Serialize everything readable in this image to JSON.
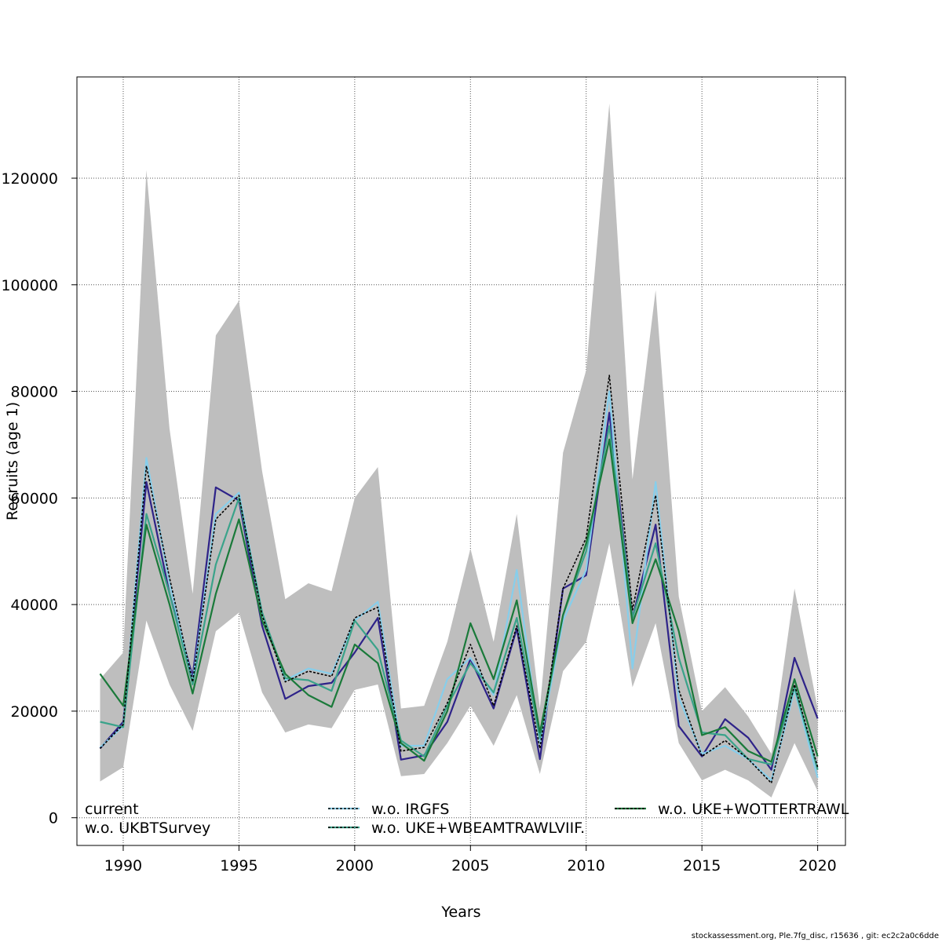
{
  "chart_data": {
    "type": "line",
    "xlabel": "Years",
    "ylabel": "Recruits (age 1)",
    "xlim": [
      1988,
      2021.2
    ],
    "ylim": [
      -5200,
      139000
    ],
    "xticks": [
      1990,
      1995,
      2000,
      2005,
      2010,
      2015,
      2020
    ],
    "yticks": [
      0,
      20000,
      40000,
      60000,
      80000,
      100000,
      120000
    ],
    "grid": true,
    "legend_position": "bottom",
    "x": [
      1989,
      1990,
      1991,
      1992,
      1993,
      1994,
      1995,
      1996,
      1997,
      1998,
      1999,
      2000,
      2001,
      2002,
      2003,
      2004,
      2005,
      2006,
      2007,
      2008,
      2009,
      2010,
      2011,
      2012,
      2013,
      2014,
      2015,
      2016,
      2017,
      2018,
      2019,
      2020
    ],
    "confidence_band": {
      "upper": [
        26000,
        31000,
        121500,
        73000,
        42000,
        90500,
        97000,
        65000,
        41000,
        44000,
        42500,
        60000,
        65800,
        20500,
        21000,
        33000,
        50500,
        33000,
        57000,
        20500,
        68500,
        84000,
        134000,
        63500,
        99000,
        41500,
        20000,
        24500,
        19000,
        12000,
        43000,
        20500
      ],
      "lower": [
        6800,
        9500,
        37000,
        25000,
        16300,
        35000,
        38500,
        23500,
        16000,
        17500,
        16800,
        24000,
        25000,
        7800,
        8200,
        14000,
        21000,
        13500,
        23000,
        8200,
        27500,
        33000,
        51500,
        24500,
        36500,
        14000,
        7000,
        9000,
        7000,
        3800,
        14000,
        5000
      ]
    },
    "series": [
      {
        "name": "current",
        "color": "#000000",
        "dash": "",
        "values": [
          13000,
          17500,
          66000,
          45000,
          25500,
          56000,
          60500,
          38000,
          25500,
          27500,
          26500,
          37500,
          39500,
          12500,
          13200,
          21500,
          32500,
          21000,
          36000,
          13000,
          43000,
          52500,
          83000,
          39000,
          60500,
          24000,
          11500,
          14500,
          11000,
          6500,
          25000,
          9500
        ]
      },
      {
        "name": "w.o. UKBTSurvey",
        "color": "#2e2389",
        "dash": "",
        "values": [
          13000,
          18000,
          63000,
          42000,
          26500,
          62000,
          59500,
          36000,
          22300,
          24700,
          25300,
          31000,
          37500,
          10900,
          11700,
          18000,
          29800,
          20500,
          35500,
          11000,
          43000,
          45500,
          76000,
          37500,
          55000,
          17200,
          11500,
          18500,
          15000,
          9000,
          30000,
          18600
        ]
      },
      {
        "name": "w.o. IRGFS",
        "color": "#87ceeb",
        "dash": "",
        "values": [
          13200,
          17200,
          67500,
          44000,
          25500,
          57000,
          61000,
          38500,
          25800,
          28000,
          27000,
          37000,
          40500,
          13500,
          13500,
          26000,
          30000,
          23000,
          46500,
          14000,
          37000,
          46500,
          80000,
          28000,
          63000,
          22500,
          12000,
          13500,
          11000,
          7000,
          24000,
          7500
        ]
      },
      {
        "name": "w.o. UKE+WBEAMTRAWLVIIF.",
        "color": "#3aa38a",
        "dash": "",
        "values": [
          18000,
          17000,
          57000,
          42000,
          25000,
          47500,
          60000,
          38500,
          26200,
          25800,
          23800,
          37000,
          31500,
          14500,
          11500,
          21000,
          29000,
          23500,
          37500,
          15000,
          38000,
          50000,
          73500,
          37500,
          51500,
          30000,
          16000,
          15500,
          11000,
          10000,
          24500,
          9000
        ]
      },
      {
        "name": "w.o. UKE+WOTTERTRAWL",
        "color": "#1a7a3a",
        "dash": "",
        "values": [
          27000,
          21000,
          55000,
          40000,
          23300,
          42000,
          56000,
          37000,
          27000,
          23000,
          20800,
          32500,
          29000,
          14000,
          10700,
          20000,
          36500,
          26000,
          40800,
          16000,
          38000,
          51500,
          71000,
          36500,
          48500,
          35000,
          15500,
          17000,
          12500,
          10500,
          26000,
          11500
        ]
      }
    ]
  },
  "footer_text": "stockassessment.org, Ple.7fg_disc, r15636 , git: ec2c2a0c6dde"
}
